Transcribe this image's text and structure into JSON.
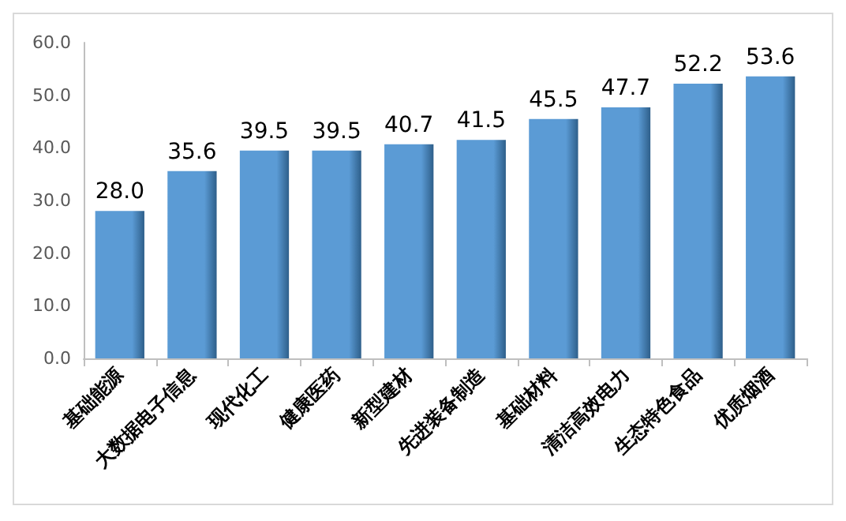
{
  "chart_data": {
    "type": "bar",
    "categories": [
      "基础能源",
      "大数据电子信息",
      "现代化工",
      "健康医药",
      "新型建材",
      "先进装备制造",
      "基础材料",
      "清洁高效电力",
      "生态特色食品",
      "优质烟酒"
    ],
    "values": [
      28.0,
      35.6,
      39.5,
      39.5,
      40.7,
      41.5,
      45.5,
      47.7,
      52.2,
      53.6
    ],
    "value_labels": [
      "28.0",
      "35.6",
      "39.5",
      "39.5",
      "40.7",
      "41.5",
      "45.5",
      "47.7",
      "52.2",
      "53.6"
    ],
    "color": "#5b9bd5",
    "ylim": [
      0,
      60
    ],
    "yticks": [
      {
        "value": 0,
        "label": "0.0"
      },
      {
        "value": 10,
        "label": "10.0"
      },
      {
        "value": 20,
        "label": "20.0"
      },
      {
        "value": 30,
        "label": "30.0"
      },
      {
        "value": 40,
        "label": "40.0"
      },
      {
        "value": 50,
        "label": "50.0"
      },
      {
        "value": 60,
        "label": "60.0"
      }
    ],
    "grid": false
  }
}
